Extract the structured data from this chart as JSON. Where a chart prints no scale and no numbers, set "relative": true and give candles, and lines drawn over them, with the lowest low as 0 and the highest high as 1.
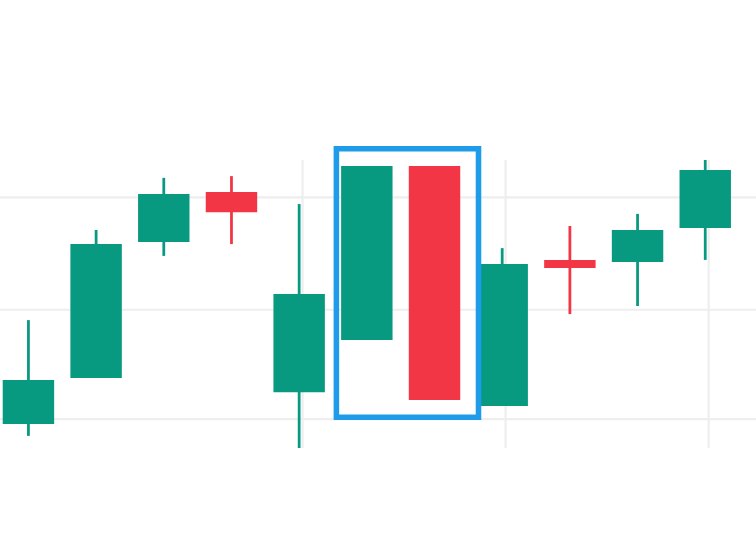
{
  "chart_data": {
    "type": "candlestick",
    "relative": true,
    "categories": [
      null,
      null,
      null,
      null,
      null,
      null,
      null,
      null,
      null,
      null,
      null
    ],
    "ohlc": [
      [
        0.083,
        0.444,
        0.042,
        0.236
      ],
      [
        0.243,
        0.757,
        0.243,
        0.708
      ],
      [
        0.715,
        0.938,
        0.667,
        0.882
      ],
      [
        0.889,
        0.944,
        0.708,
        0.819
      ],
      [
        0.194,
        0.847,
        0,
        0.535
      ],
      [
        0.375,
        0.979,
        0.375,
        0.979
      ],
      [
        0.979,
        0.979,
        0.167,
        0.167
      ],
      [
        0.146,
        0.694,
        0.146,
        0.639
      ],
      [
        0.653,
        0.771,
        0.465,
        0.625
      ],
      [
        0.646,
        0.813,
        0.493,
        0.757
      ],
      [
        0.764,
        1,
        0.653,
        0.965
      ]
    ],
    "colors": [
      "#089981",
      "#089981",
      "#089981",
      "#f23645",
      "#089981",
      "#089981",
      "#f23645",
      "#089981",
      "#f23645",
      "#089981",
      "#089981"
    ],
    "grid": true,
    "tick_labels": false
  }
}
